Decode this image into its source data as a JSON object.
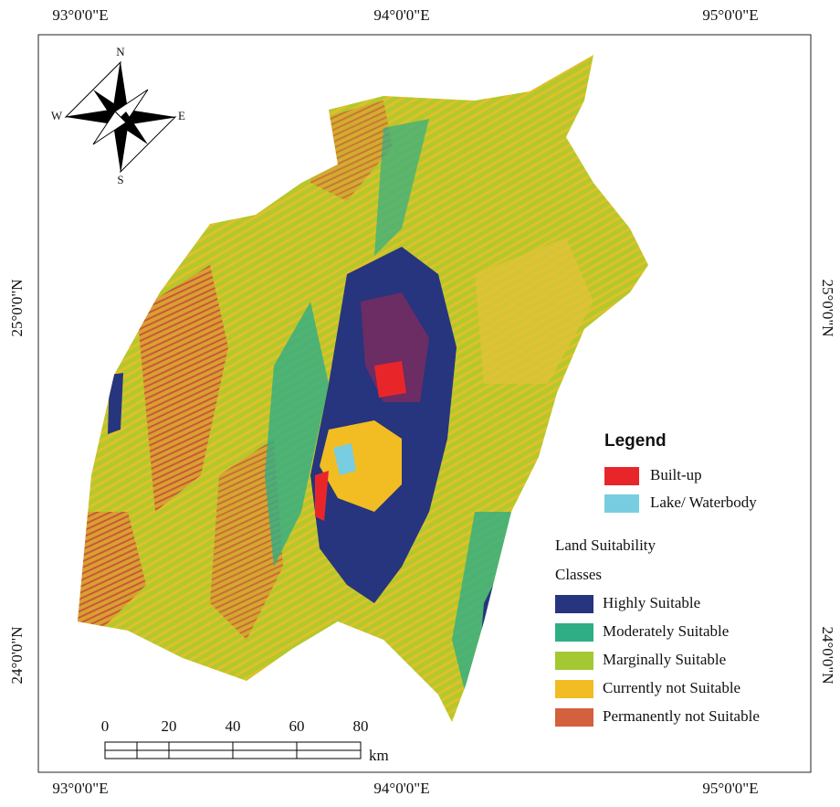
{
  "graticule": {
    "top": [
      "93°0'0\"E",
      "94°0'0\"E",
      "95°0'0\"E"
    ],
    "bottom": [
      "93°0'0\"E",
      "94°0'0\"E",
      "95°0'0\"E"
    ],
    "left": [
      "25°0'0\"N",
      "24°0'0\"N"
    ],
    "right": [
      "25°0'0\"N",
      "24°0'0\"N"
    ]
  },
  "compass": {
    "n": "N",
    "s": "S",
    "e": "E",
    "w": "W"
  },
  "legend": {
    "title": "Legend",
    "features": [
      {
        "label": "Built-up",
        "color": "#e8262a"
      },
      {
        "label": "Lake/ Waterbody",
        "color": "#79cde0"
      }
    ],
    "classes_title": [
      "Land Suitability",
      "Classes"
    ],
    "classes": [
      {
        "label": "Highly Suitable",
        "color": "#26357e"
      },
      {
        "label": "Moderately Suitable",
        "color": "#2fae86"
      },
      {
        "label": "Marginally Suitable",
        "color": "#a3c832"
      },
      {
        "label": "Currently not Suitable",
        "color": "#f2bd22"
      },
      {
        "label": "Permanently not Suitable",
        "color": "#d3603e"
      }
    ]
  },
  "scale_bar": {
    "ticks": [
      "0",
      "20",
      "40",
      "60",
      "80"
    ],
    "unit": "km"
  }
}
